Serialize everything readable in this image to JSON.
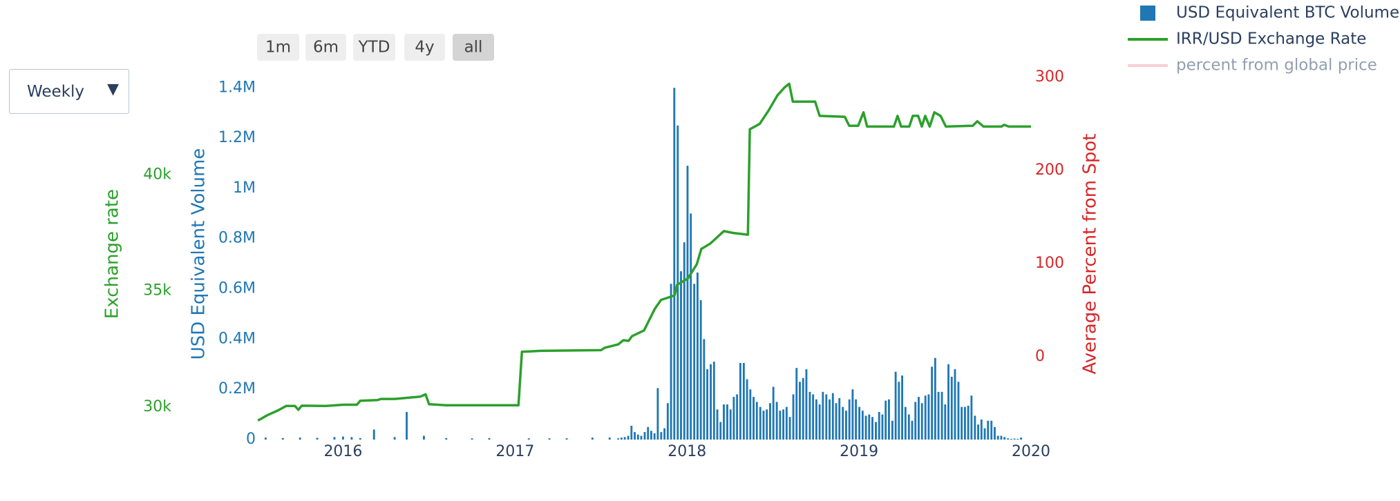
{
  "chart_data": {
    "type": "bar_line",
    "frequency_options": [
      "Weekly"
    ],
    "range_buttons": [
      "1m",
      "6m",
      "YTD",
      "4y",
      "all"
    ],
    "selected_button": 4,
    "x_axis_label": null,
    "y_axis_label": "USD Equivalent Volume",
    "y2_axis_label": "Exchange rate",
    "y3_axis_label": "Average Percent from Spot",
    "xlim": [
      2015.5,
      2020.0
    ],
    "xticks": [
      2016,
      2017,
      2018,
      2019,
      2020
    ],
    "ylim": [
      0,
      1442000
    ],
    "yticks": [
      0,
      {
        "value": 200000,
        "label": "0.2M"
      },
      {
        "value": 400000,
        "label": "0.4M"
      },
      {
        "value": 600000,
        "label": "0.6M"
      },
      {
        "value": 800000,
        "label": "0.8M"
      },
      {
        "value": 1000000,
        "label": "1M"
      },
      {
        "value": 1200000,
        "label": "1.2M"
      },
      {
        "value": 1400000,
        "label": "1.4M"
      }
    ],
    "y2lim": [
      28600,
      44200
    ],
    "y2ticks": [
      {
        "value": 30000,
        "label": "30k"
      },
      {
        "value": 35000,
        "label": "35k"
      },
      {
        "value": 40000,
        "label": "40k"
      }
    ],
    "y3lim": [
      -89,
      300
    ],
    "y3ticks": [
      0,
      100,
      200,
      300
    ],
    "series": [
      {
        "name": "USD Equivalent BTC Volume",
        "color": "#1f77b4",
        "axis": "y",
        "kind": "bar",
        "x": [
          2015.55,
          2015.65,
          2015.75,
          2015.85,
          2015.95,
          2016.0,
          2016.05,
          2016.1,
          2016.18,
          2016.3,
          2016.37,
          2016.47,
          2016.6,
          2016.75,
          2016.85,
          2017.08,
          2017.2,
          2017.3,
          2017.45,
          2017.55,
          2017.6,
          2017.619,
          2017.638,
          2017.658,
          2017.677,
          2017.696,
          2017.715,
          2017.734,
          2017.754,
          2017.773,
          2017.792,
          2017.811,
          2017.83,
          2017.85,
          2017.869,
          2017.888,
          2017.907,
          2017.926,
          2017.946,
          2017.965,
          2017.984,
          2018.003,
          2018.022,
          2018.042,
          2018.061,
          2018.08,
          2018.099,
          2018.118,
          2018.138,
          2018.157,
          2018.176,
          2018.195,
          2018.214,
          2018.234,
          2018.253,
          2018.272,
          2018.291,
          2018.31,
          2018.33,
          2018.349,
          2018.368,
          2018.387,
          2018.406,
          2018.426,
          2018.445,
          2018.464,
          2018.483,
          2018.502,
          2018.522,
          2018.541,
          2018.56,
          2018.579,
          2018.598,
          2018.618,
          2018.637,
          2018.656,
          2018.675,
          2018.694,
          2018.714,
          2018.733,
          2018.752,
          2018.771,
          2018.79,
          2018.81,
          2018.829,
          2018.848,
          2018.867,
          2018.886,
          2018.906,
          2018.925,
          2018.944,
          2018.963,
          2018.982,
          2019.002,
          2019.021,
          2019.04,
          2019.059,
          2019.078,
          2019.098,
          2019.117,
          2019.136,
          2019.155,
          2019.174,
          2019.194,
          2019.213,
          2019.232,
          2019.251,
          2019.27,
          2019.29,
          2019.309,
          2019.328,
          2019.347,
          2019.366,
          2019.386,
          2019.405,
          2019.424,
          2019.443,
          2019.462,
          2019.482,
          2019.501,
          2019.52,
          2019.539,
          2019.558,
          2019.578,
          2019.597,
          2019.616,
          2019.635,
          2019.654,
          2019.674,
          2019.693,
          2019.712,
          2019.731,
          2019.75,
          2019.77,
          2019.789,
          2019.808,
          2019.827,
          2019.846,
          2019.866,
          2019.885,
          2019.904,
          2019.923,
          2019.942
        ],
        "values": [
          8000,
          6000,
          8000,
          7000,
          10000,
          12000,
          10000,
          6000,
          40000,
          10000,
          110000,
          15000,
          6000,
          5000,
          6000,
          5000,
          5000,
          5000,
          8000,
          8000,
          5000,
          8000,
          10000,
          15000,
          55000,
          30000,
          20000,
          15000,
          30000,
          50000,
          35000,
          25000,
          205000,
          30000,
          45000,
          145000,
          620000,
          1400000,
          1250000,
          670000,
          785000,
          1090000,
          900000,
          620000,
          665000,
          555000,
          400000,
          280000,
          300000,
          310000,
          120000,
          70000,
          140000,
          140000,
          120000,
          170000,
          180000,
          305000,
          305000,
          240000,
          200000,
          170000,
          150000,
          130000,
          115000,
          120000,
          145000,
          210000,
          150000,
          115000,
          120000,
          130000,
          90000,
          180000,
          285000,
          230000,
          245000,
          280000,
          190000,
          180000,
          160000,
          140000,
          190000,
          180000,
          160000,
          185000,
          145000,
          165000,
          130000,
          115000,
          160000,
          200000,
          160000,
          130000,
          115000,
          95000,
          100000,
          90000,
          70000,
          110000,
          100000,
          155000,
          160000,
          75000,
          270000,
          230000,
          255000,
          130000,
          100000,
          75000,
          150000,
          170000,
          145000,
          175000,
          180000,
          290000,
          325000,
          190000,
          190000,
          140000,
          300000,
          250000,
          280000,
          230000,
          130000,
          130000,
          135000,
          175000,
          95000,
          60000,
          80000,
          45000,
          75000,
          75000,
          50000,
          15000,
          15000,
          10000,
          5000,
          3000,
          4000,
          3000,
          8000
        ]
      },
      {
        "name": "IRR/USD Exchange Rate",
        "color": "#2ca02c",
        "axis": "y2",
        "kind": "line",
        "x": [
          2015.505,
          2015.56,
          2015.62,
          2015.67,
          2015.72,
          2015.74,
          2015.76,
          2015.9,
          2016.0,
          2016.08,
          2016.1,
          2016.2,
          2016.22,
          2016.3,
          2016.45,
          2016.48,
          2016.5,
          2016.6,
          2016.8,
          2017.02,
          2017.04,
          2017.15,
          2017.5,
          2017.52,
          2017.6,
          2017.63,
          2017.66,
          2017.68,
          2017.75,
          2017.8125,
          2017.849,
          2017.927,
          2017.943,
          2018.005,
          2018.057,
          2018.083,
          2018.135,
          2018.214,
          2018.266,
          2018.354,
          2018.365,
          2018.422,
          2018.474,
          2018.526,
          2018.568,
          2018.594,
          2018.615,
          2018.745,
          2018.771,
          2018.917,
          2018.943,
          2018.995,
          2019.026,
          2019.047,
          2019.203,
          2019.224,
          2019.245,
          2019.292,
          2019.313,
          2019.344,
          2019.365,
          2019.385,
          2019.411,
          2019.438,
          2019.474,
          2019.505,
          2019.661,
          2019.688,
          2019.724,
          2019.828,
          2019.844,
          2019.87,
          2020.0
        ],
        "values": [
          29420,
          29650,
          29850,
          30050,
          30050,
          29880,
          30060,
          30050,
          30100,
          30100,
          30270,
          30300,
          30350,
          30350,
          30450,
          30550,
          30120,
          30080,
          30080,
          30080,
          32380,
          32420,
          32450,
          32550,
          32700,
          32880,
          32850,
          33050,
          33300,
          34230,
          34615,
          34808,
          35269,
          35538,
          36154,
          36808,
          37038,
          37577,
          37500,
          37423,
          41962,
          42192,
          42769,
          43423,
          43769,
          43923,
          43154,
          43154,
          42538,
          42500,
          42115,
          42115,
          42692,
          42077,
          42077,
          42538,
          42077,
          42077,
          42538,
          42538,
          42077,
          42538,
          42077,
          42692,
          42538,
          42077,
          42115,
          42308,
          42077,
          42077,
          42154,
          42077,
          42077
        ]
      },
      {
        "name": "percent from global price",
        "color": "#f4a3a8",
        "axis": "y3",
        "kind": "line",
        "hidden": true
      }
    ]
  }
}
